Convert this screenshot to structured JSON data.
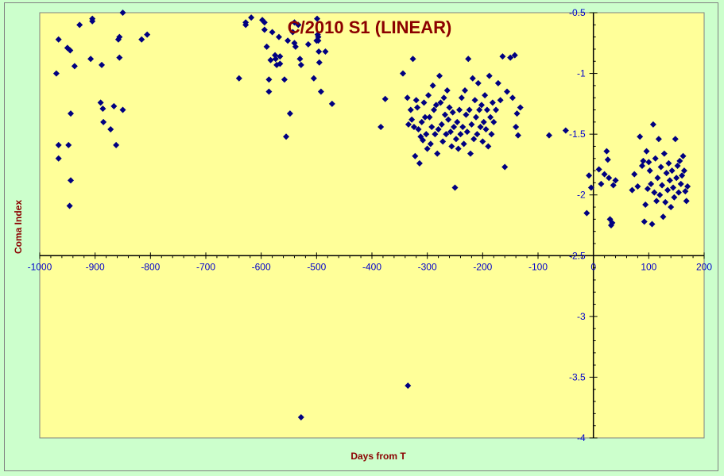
{
  "chart_data": {
    "type": "scatter",
    "title": "C/2010 S1 (LINEAR)",
    "xlabel": "Days from T",
    "ylabel": "Coma Index",
    "xlim": [
      -1000,
      200
    ],
    "ylim": [
      -4,
      -0.5
    ],
    "y_axis_at_x": 0,
    "x_axis_at_y": -2.5,
    "xticks": [
      -1000,
      -900,
      -800,
      -700,
      -600,
      -500,
      -400,
      -300,
      -200,
      -100,
      0,
      100,
      200
    ],
    "xtick_labels": [
      "-1000",
      "-900",
      "-800",
      "-700",
      "-600",
      "-500",
      "-400",
      "-300",
      "-200",
      "-100",
      "0",
      "100",
      "200"
    ],
    "yticks": [
      -0.5,
      -1,
      -1.5,
      -2,
      -2.5,
      -3,
      -3.5,
      -4
    ],
    "ytick_labels": [
      "-0.5",
      "-1",
      "-1.5",
      "-2",
      "-2.5",
      "-3",
      "-3.5",
      "-4"
    ],
    "grid": false,
    "legend": "none",
    "colors": {
      "plot_bg": "#ffff99",
      "page_bg": "#ccffcc",
      "marker": "#000080",
      "title": "#8b0000",
      "ticks": "#0000cc",
      "axes": "#000000"
    },
    "series": [
      {
        "marker": "diamond",
        "points": [
          [
            -970,
            -1.0
          ],
          [
            -966,
            -0.72
          ],
          [
            -966,
            -1.59
          ],
          [
            -966,
            -1.7
          ],
          [
            -950,
            -0.79
          ],
          [
            -945,
            -0.81
          ],
          [
            -948,
            -1.59
          ],
          [
            -944,
            -1.33
          ],
          [
            -944,
            -1.88
          ],
          [
            -946,
            -2.09
          ],
          [
            -937,
            -0.94
          ],
          [
            -928,
            -0.6
          ],
          [
            -908,
            -0.88
          ],
          [
            -905,
            -0.55
          ],
          [
            -905,
            -0.57
          ],
          [
            -890,
            -1.24
          ],
          [
            -888,
            -0.93
          ],
          [
            -886,
            -1.29
          ],
          [
            -885,
            -1.4
          ],
          [
            -872,
            -1.46
          ],
          [
            -866,
            -1.27
          ],
          [
            -862,
            -1.59
          ],
          [
            -858,
            -0.72
          ],
          [
            -856,
            -0.7
          ],
          [
            -856,
            -0.87
          ],
          [
            -850,
            -0.5
          ],
          [
            -850,
            -1.3
          ],
          [
            -816,
            -0.72
          ],
          [
            -806,
            -0.68
          ],
          [
            -640,
            -1.04
          ],
          [
            -628,
            -0.58
          ],
          [
            -628,
            -0.6
          ],
          [
            -618,
            -0.54
          ],
          [
            -598,
            -0.56
          ],
          [
            -594,
            -0.64
          ],
          [
            -594,
            -0.58
          ],
          [
            -590,
            -0.78
          ],
          [
            -586,
            -1.05
          ],
          [
            -586,
            -1.15
          ],
          [
            -583,
            -0.89
          ],
          [
            -580,
            -0.66
          ],
          [
            -575,
            -0.85
          ],
          [
            -574,
            -0.88
          ],
          [
            -572,
            -0.93
          ],
          [
            -568,
            -0.7
          ],
          [
            -566,
            -0.86
          ],
          [
            -566,
            -0.92
          ],
          [
            -558,
            -1.05
          ],
          [
            -555,
            -1.52
          ],
          [
            -552,
            -0.73
          ],
          [
            -548,
            -1.33
          ],
          [
            -543,
            -0.66
          ],
          [
            -540,
            -0.58
          ],
          [
            -540,
            -0.75
          ],
          [
            -538,
            -0.78
          ],
          [
            -533,
            -0.6
          ],
          [
            -530,
            -0.88
          ],
          [
            -528,
            -0.93
          ],
          [
            -515,
            -0.76
          ],
          [
            -505,
            -1.04
          ],
          [
            -500,
            -0.73
          ],
          [
            -499,
            -0.55
          ],
          [
            -498,
            -0.68
          ],
          [
            -497,
            -0.7
          ],
          [
            -497,
            -0.73
          ],
          [
            -496,
            -0.82
          ],
          [
            -495,
            -0.91
          ],
          [
            -492,
            -1.15
          ],
          [
            -484,
            -0.82
          ],
          [
            -472,
            -1.25
          ],
          [
            -384,
            -1.44
          ],
          [
            -376,
            -1.21
          ],
          [
            -344,
            -1.0
          ],
          [
            -336,
            -1.2
          ],
          [
            -334,
            -1.42
          ],
          [
            -330,
            -1.3
          ],
          [
            -328,
            -1.38
          ],
          [
            -326,
            -0.88
          ],
          [
            -324,
            -1.44
          ],
          [
            -322,
            -1.68
          ],
          [
            -320,
            -1.22
          ],
          [
            -318,
            -1.28
          ],
          [
            -316,
            -1.46
          ],
          [
            -314,
            -1.74
          ],
          [
            -312,
            -1.52
          ],
          [
            -310,
            -1.4
          ],
          [
            -308,
            -1.55
          ],
          [
            -306,
            -1.24
          ],
          [
            -304,
            -1.36
          ],
          [
            -302,
            -1.5
          ],
          [
            -300,
            -1.62
          ],
          [
            -298,
            -1.18
          ],
          [
            -296,
            -1.36
          ],
          [
            -294,
            -1.58
          ],
          [
            -292,
            -1.44
          ],
          [
            -290,
            -1.1
          ],
          [
            -288,
            -1.3
          ],
          [
            -286,
            -1.5
          ],
          [
            -284,
            -1.26
          ],
          [
            -282,
            -1.66
          ],
          [
            -280,
            -1.46
          ],
          [
            -278,
            -1.02
          ],
          [
            -276,
            -1.24
          ],
          [
            -274,
            -1.42
          ],
          [
            -272,
            -1.56
          ],
          [
            -270,
            -1.2
          ],
          [
            -268,
            -1.34
          ],
          [
            -266,
            -1.5
          ],
          [
            -264,
            -1.14
          ],
          [
            -262,
            -1.38
          ],
          [
            -260,
            -1.28
          ],
          [
            -258,
            -1.48
          ],
          [
            -256,
            -1.6
          ],
          [
            -254,
            -1.32
          ],
          [
            -252,
            -1.44
          ],
          [
            -250,
            -1.94
          ],
          [
            -248,
            -1.54
          ],
          [
            -246,
            -1.4
          ],
          [
            -244,
            -1.62
          ],
          [
            -242,
            -1.3
          ],
          [
            -240,
            -1.5
          ],
          [
            -238,
            -1.2
          ],
          [
            -236,
            -1.44
          ],
          [
            -234,
            -1.58
          ],
          [
            -232,
            -1.14
          ],
          [
            -230,
            -1.34
          ],
          [
            -228,
            -1.48
          ],
          [
            -226,
            -0.88
          ],
          [
            -224,
            -1.3
          ],
          [
            -222,
            -1.66
          ],
          [
            -220,
            -1.42
          ],
          [
            -218,
            -1.04
          ],
          [
            -216,
            -1.54
          ],
          [
            -214,
            -1.22
          ],
          [
            -212,
            -1.36
          ],
          [
            -210,
            -1.5
          ],
          [
            -208,
            -1.08
          ],
          [
            -206,
            -1.3
          ],
          [
            -204,
            -1.44
          ],
          [
            -202,
            -1.26
          ],
          [
            -200,
            -1.56
          ],
          [
            -198,
            -1.4
          ],
          [
            -196,
            -1.18
          ],
          [
            -194,
            -1.46
          ],
          [
            -192,
            -1.3
          ],
          [
            -190,
            -1.6
          ],
          [
            -188,
            -1.02
          ],
          [
            -186,
            -1.36
          ],
          [
            -184,
            -1.5
          ],
          [
            -182,
            -1.24
          ],
          [
            -180,
            -1.4
          ],
          [
            -176,
            -1.3
          ],
          [
            -172,
            -1.08
          ],
          [
            -168,
            -1.22
          ],
          [
            -164,
            -0.86
          ],
          [
            -160,
            -1.77
          ],
          [
            -156,
            -1.15
          ],
          [
            -150,
            -0.87
          ],
          [
            -146,
            -1.2
          ],
          [
            -142,
            -0.85
          ],
          [
            -140,
            -1.44
          ],
          [
            -138,
            -1.33
          ],
          [
            -136,
            -1.51
          ],
          [
            -132,
            -1.28
          ],
          [
            -80,
            -1.51
          ],
          [
            -50,
            -1.47
          ],
          [
            -12,
            -2.15
          ],
          [
            -8,
            -1.84
          ],
          [
            -4,
            -1.94
          ],
          [
            10,
            -1.79
          ],
          [
            14,
            -1.91
          ],
          [
            20,
            -1.83
          ],
          [
            24,
            -1.64
          ],
          [
            26,
            -1.71
          ],
          [
            28,
            -1.86
          ],
          [
            30,
            -2.2
          ],
          [
            32,
            -2.25
          ],
          [
            34,
            -2.23
          ],
          [
            36,
            -1.92
          ],
          [
            40,
            -1.88
          ],
          [
            70,
            -1.96
          ],
          [
            74,
            -1.83
          ],
          [
            80,
            -1.93
          ],
          [
            84,
            -1.52
          ],
          [
            88,
            -1.76
          ],
          [
            90,
            -1.72
          ],
          [
            92,
            -2.22
          ],
          [
            94,
            -2.08
          ],
          [
            96,
            -1.64
          ],
          [
            98,
            -1.95
          ],
          [
            100,
            -1.73
          ],
          [
            102,
            -1.8
          ],
          [
            104,
            -1.91
          ],
          [
            106,
            -2.24
          ],
          [
            108,
            -1.42
          ],
          [
            110,
            -1.98
          ],
          [
            112,
            -1.7
          ],
          [
            114,
            -2.05
          ],
          [
            116,
            -1.86
          ],
          [
            118,
            -1.54
          ],
          [
            120,
            -2.0
          ],
          [
            122,
            -1.77
          ],
          [
            124,
            -1.92
          ],
          [
            126,
            -2.18
          ],
          [
            128,
            -1.66
          ],
          [
            130,
            -2.06
          ],
          [
            132,
            -1.82
          ],
          [
            134,
            -1.96
          ],
          [
            136,
            -1.74
          ],
          [
            138,
            -1.88
          ],
          [
            140,
            -2.1
          ],
          [
            142,
            -1.8
          ],
          [
            144,
            -1.94
          ],
          [
            146,
            -2.02
          ],
          [
            148,
            -1.54
          ],
          [
            150,
            -1.86
          ],
          [
            152,
            -1.76
          ],
          [
            154,
            -1.98
          ],
          [
            156,
            -1.72
          ],
          [
            158,
            -1.91
          ],
          [
            160,
            -1.84
          ],
          [
            162,
            -1.68
          ],
          [
            164,
            -1.8
          ],
          [
            166,
            -1.97
          ],
          [
            168,
            -2.05
          ],
          [
            170,
            -1.93
          ],
          [
            -335,
            -3.57
          ],
          [
            -528,
            -3.83
          ]
        ]
      }
    ]
  }
}
